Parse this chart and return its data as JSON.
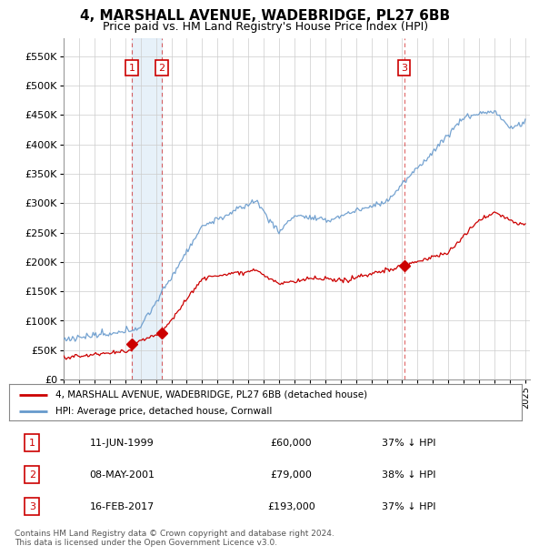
{
  "title": "4, MARSHALL AVENUE, WADEBRIDGE, PL27 6BB",
  "subtitle": "Price paid vs. HM Land Registry's House Price Index (HPI)",
  "ylabel_ticks": [
    "£0",
    "£50K",
    "£100K",
    "£150K",
    "£200K",
    "£250K",
    "£300K",
    "£350K",
    "£400K",
    "£450K",
    "£500K",
    "£550K"
  ],
  "ytick_values": [
    0,
    50000,
    100000,
    150000,
    200000,
    250000,
    300000,
    350000,
    400000,
    450000,
    500000,
    550000
  ],
  "ylim": [
    0,
    580000
  ],
  "x_start_year": 1995,
  "x_end_year": 2025,
  "transactions": [
    {
      "num": 1,
      "date": "11-JUN-1999",
      "price": 60000,
      "year": 1999.44,
      "pct": "37% ↓ HPI"
    },
    {
      "num": 2,
      "date": "08-MAY-2001",
      "price": 79000,
      "year": 2001.36,
      "pct": "38% ↓ HPI"
    },
    {
      "num": 3,
      "date": "16-FEB-2017",
      "price": 193000,
      "year": 2017.12,
      "pct": "37% ↓ HPI"
    }
  ],
  "legend_label_red": "4, MARSHALL AVENUE, WADEBRIDGE, PL27 6BB (detached house)",
  "legend_label_blue": "HPI: Average price, detached house, Cornwall",
  "footer": "Contains HM Land Registry data © Crown copyright and database right 2024.\nThis data is licensed under the Open Government Licence v3.0.",
  "red_color": "#cc0000",
  "blue_color": "#6699cc",
  "blue_fill_color": "#d8e8f5",
  "grid_color": "#cccccc",
  "background_color": "#ffffff"
}
